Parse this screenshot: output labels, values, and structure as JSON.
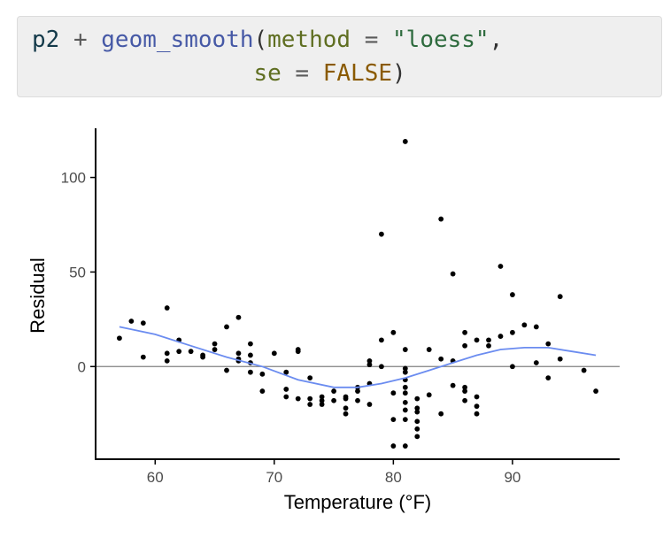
{
  "code": {
    "line1": [
      {
        "cls": "tok-var",
        "text": "p2"
      },
      {
        "cls": "tok-op",
        "text": " + "
      },
      {
        "cls": "tok-fn",
        "text": "geom_smooth"
      },
      {
        "cls": "tok-punct",
        "text": "("
      },
      {
        "cls": "tok-arg",
        "text": "method"
      },
      {
        "cls": "tok-op",
        "text": " = "
      },
      {
        "cls": "tok-str",
        "text": "\"loess\""
      },
      {
        "cls": "tok-punct",
        "text": ","
      }
    ],
    "line2": [
      {
        "cls": "tok-punct",
        "text": "                "
      },
      {
        "cls": "tok-arg",
        "text": "se"
      },
      {
        "cls": "tok-op",
        "text": " = "
      },
      {
        "cls": "tok-const",
        "text": "FALSE"
      },
      {
        "cls": "tok-punct",
        "text": ")"
      }
    ]
  },
  "chart_data": {
    "type": "scatter",
    "xlabel": "Temperature (°F)",
    "ylabel": "Residual",
    "xlim": [
      55,
      99
    ],
    "ylim": [
      -49,
      126
    ],
    "x_ticks": [
      60,
      70,
      80,
      90
    ],
    "y_ticks": [
      0,
      50,
      100
    ],
    "reference_line_y": 0,
    "grid": false,
    "colors": {
      "points": "#000000",
      "smooth": "#6b8cf0",
      "reference": "#808080"
    },
    "points": {
      "x": [
        57,
        58,
        59,
        59,
        61,
        61,
        61,
        62,
        62,
        63,
        64,
        64,
        65,
        65,
        66,
        66,
        67,
        67,
        67,
        67,
        68,
        68,
        68,
        68,
        69,
        69,
        70,
        71,
        71,
        71,
        72,
        72,
        72,
        73,
        73,
        73,
        74,
        74,
        74,
        75,
        75,
        76,
        76,
        76,
        76,
        77,
        77,
        77,
        78,
        78,
        78,
        78,
        79,
        79,
        79,
        80,
        80,
        80,
        80,
        81,
        81,
        81,
        81,
        81,
        81,
        81,
        81,
        81,
        81,
        81,
        82,
        82,
        82,
        82,
        82,
        82,
        83,
        83,
        84,
        84,
        84,
        85,
        85,
        85,
        86,
        86,
        86,
        86,
        86,
        87,
        87,
        87,
        87,
        88,
        88,
        89,
        89,
        90,
        90,
        90,
        91,
        92,
        92,
        93,
        93,
        94,
        94,
        96,
        97
      ],
      "y": [
        15,
        24,
        23,
        5,
        31,
        7,
        3,
        14,
        8,
        8,
        5,
        6,
        12,
        9,
        21,
        -2,
        26,
        7,
        4,
        3,
        12,
        6,
        2,
        -3,
        -4,
        -13,
        7,
        -3,
        -12,
        -16,
        9,
        8,
        -17,
        -6,
        -17,
        -20,
        -18,
        -16,
        -20,
        -13,
        -18,
        -16,
        -22,
        -25,
        -17,
        -11,
        -13,
        -18,
        -20,
        1,
        3,
        -9,
        70,
        14,
        0,
        18,
        -28,
        -42,
        -14,
        119,
        9,
        -1,
        -3,
        -7,
        -11,
        -14,
        -19,
        -23,
        -28,
        -42,
        -17,
        -22,
        -24,
        -29,
        -33,
        -37,
        9,
        -15,
        78,
        4,
        -25,
        49,
        3,
        -10,
        18,
        11,
        -11,
        -13,
        -18,
        14,
        -16,
        -21,
        -25,
        14,
        11,
        16,
        53,
        38,
        18,
        0,
        22,
        21,
        2,
        12,
        -6,
        37,
        4,
        -2,
        -13
      ]
    },
    "smooth": {
      "x": [
        57,
        60,
        63,
        66,
        69,
        72,
        75,
        77,
        79,
        81,
        83,
        85,
        87,
        89,
        91,
        93,
        95,
        97
      ],
      "y": [
        21,
        17,
        11,
        5,
        0,
        -7,
        -11,
        -11,
        -9,
        -6,
        -2,
        2,
        6,
        9,
        10,
        10,
        8,
        6
      ]
    }
  }
}
